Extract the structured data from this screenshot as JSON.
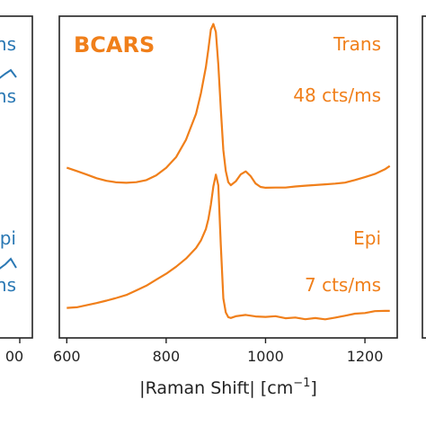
{
  "chart_data": {
    "type": "line",
    "title": "BCARS",
    "xlabel_prefix": "|Raman Shift| [cm",
    "xlabel_sup": "−1",
    "xlabel_suffix": "]",
    "xlim": [
      585,
      1265
    ],
    "ylim": [
      -0.15,
      2.25
    ],
    "xticks": [
      600,
      800,
      1000,
      1200
    ],
    "xtick_labels": [
      "600",
      "800",
      "1000",
      "1200"
    ],
    "color": "#f07f1a",
    "annotations": {
      "top_label": "Trans",
      "top_rate": "48 cts/ms",
      "bottom_label": "Epi",
      "bottom_rate": "7 cts/ms"
    },
    "series": [
      {
        "x": [
          600,
          620,
          640,
          660,
          680,
          700,
          720,
          740,
          760,
          780,
          800,
          820,
          840,
          860,
          870,
          880,
          885,
          890,
          895,
          900,
          905,
          910,
          915,
          920,
          925,
          930,
          940,
          950,
          960,
          970,
          980,
          990,
          1000,
          1020,
          1040,
          1060,
          1080,
          1100,
          1120,
          1140,
          1160,
          1180,
          1200,
          1220,
          1240,
          1250
        ],
        "y": [
          1.12,
          1.09,
          1.06,
          1.03,
          1.01,
          1.0,
          1.0,
          1.01,
          1.03,
          1.07,
          1.13,
          1.21,
          1.34,
          1.53,
          1.68,
          1.87,
          2.0,
          2.14,
          2.18,
          2.12,
          1.88,
          1.55,
          1.25,
          1.1,
          1.02,
          1.0,
          1.03,
          1.08,
          1.1,
          1.06,
          1.0,
          0.97,
          0.96,
          0.96,
          0.96,
          0.97,
          0.98,
          0.99,
          1.0,
          1.01,
          1.02,
          1.04,
          1.06,
          1.08,
          1.11,
          1.13
        ]
      },
      {
        "x": [
          600,
          620,
          640,
          660,
          680,
          700,
          720,
          740,
          760,
          780,
          800,
          820,
          840,
          860,
          870,
          880,
          885,
          890,
          895,
          900,
          905,
          910,
          915,
          920,
          925,
          930,
          940,
          960,
          980,
          1000,
          1020,
          1040,
          1060,
          1080,
          1100,
          1120,
          1140,
          1160,
          1180,
          1200,
          1220,
          1240,
          1250
        ],
        "y": [
          0.07,
          0.08,
          0.1,
          0.12,
          0.14,
          0.16,
          0.18,
          0.21,
          0.24,
          0.28,
          0.32,
          0.37,
          0.43,
          0.51,
          0.57,
          0.66,
          0.74,
          0.85,
          0.99,
          1.08,
          1.0,
          0.55,
          0.15,
          0.04,
          0.0,
          -0.01,
          0.0,
          0.01,
          0.0,
          0.0,
          0.01,
          0.0,
          0.01,
          0.0,
          0.01,
          0.0,
          0.01,
          0.02,
          0.03,
          0.03,
          0.04,
          0.04,
          0.04
        ]
      }
    ]
  },
  "left_panel": {
    "color": "#2a78b4",
    "labels": [
      "ns",
      "ns",
      "pi",
      "ns"
    ],
    "xtick_label": "00"
  }
}
